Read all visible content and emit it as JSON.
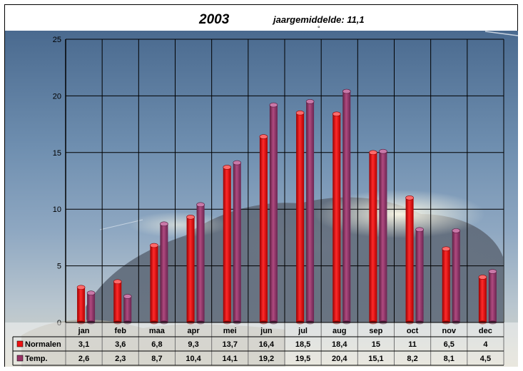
{
  "title": "2003",
  "subtitle": "jaargemiddelde: 11,1",
  "subtitle_mark": "°",
  "chart_data": {
    "type": "bar",
    "title": "2003",
    "subtitle": "jaargemiddelde: 11,1",
    "categories": [
      "jan",
      "feb",
      "maa",
      "apr",
      "mei",
      "jun",
      "jul",
      "aug",
      "sep",
      "oct",
      "nov",
      "dec"
    ],
    "series": [
      {
        "name": "Normalen",
        "color": "#ee1111",
        "values": [
          3.1,
          3.6,
          6.8,
          9.3,
          13.7,
          16.4,
          18.5,
          18.4,
          15,
          11,
          6.5,
          4
        ],
        "labels": [
          "3,1",
          "3,6",
          "6,8",
          "9,3",
          "13,7",
          "16,4",
          "18,5",
          "18,4",
          "15",
          "11",
          "6,5",
          "4"
        ]
      },
      {
        "name": "Temp.",
        "color": "#993366",
        "values": [
          2.6,
          2.3,
          8.7,
          10.4,
          14.1,
          19.2,
          19.5,
          20.4,
          15.1,
          8.2,
          8.1,
          4.5
        ],
        "labels": [
          "2,6",
          "2,3",
          "8,7",
          "10,4",
          "14,1",
          "19,2",
          "19,5",
          "20,4",
          "15,1",
          "8,2",
          "8,1",
          "4,5"
        ]
      }
    ],
    "ylim": [
      0,
      25
    ],
    "yticks": [
      0,
      5,
      10,
      15,
      20,
      25
    ],
    "grid": true,
    "legend": "data-table-left",
    "background": "sky-photo"
  }
}
